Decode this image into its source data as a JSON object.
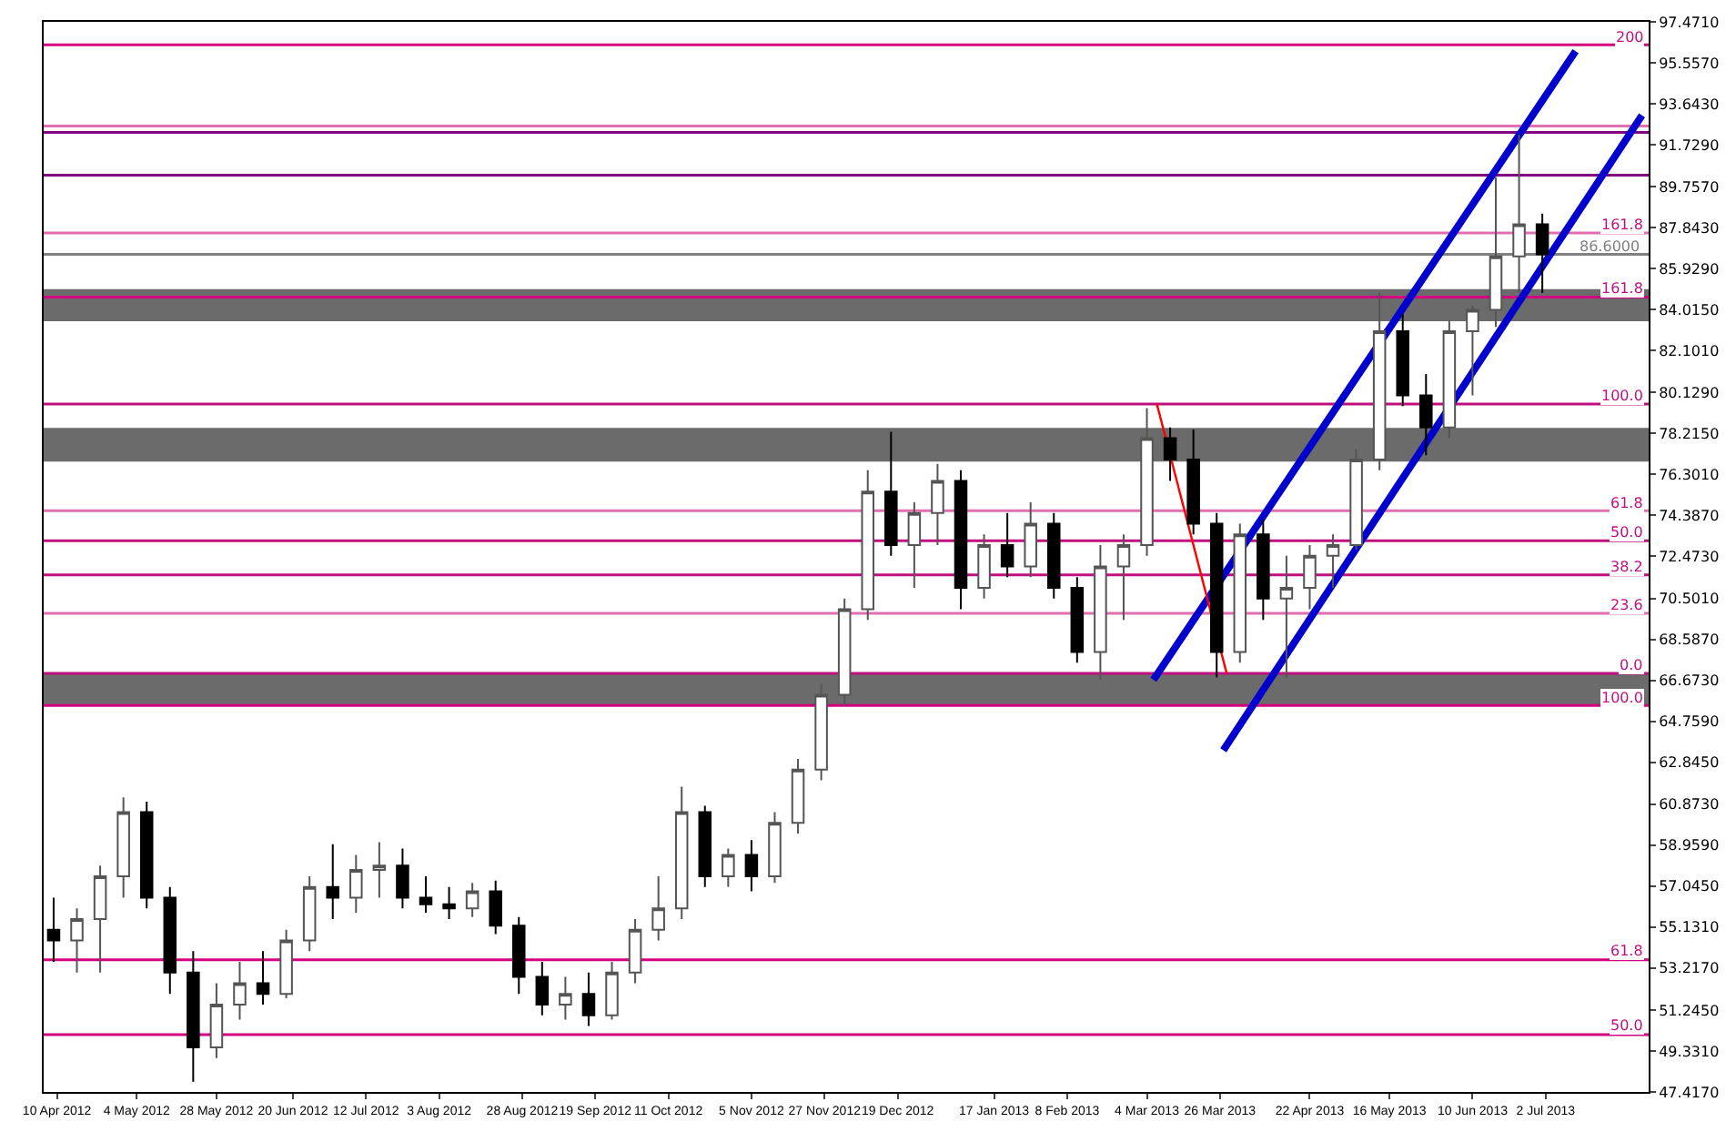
{
  "chart_data": {
    "type": "candlestick",
    "xlim": [
      "2012-04-06",
      "2013-08-02"
    ],
    "xticks": [
      {
        "value": "2012-04-10",
        "label": "10 Apr 2012"
      },
      {
        "value": "2012-05-04",
        "label": "4 May 2012"
      },
      {
        "value": "2012-05-28",
        "label": "28 May 2012"
      },
      {
        "value": "2012-06-20",
        "label": "20 Jun 2012"
      },
      {
        "value": "2012-07-12",
        "label": "12 Jul 2012"
      },
      {
        "value": "2012-08-03",
        "label": "3 Aug 2012"
      },
      {
        "value": "2012-08-28",
        "label": "28 Aug 2012"
      },
      {
        "value": "2012-09-19",
        "label": "19 Sep 2012"
      },
      {
        "value": "2012-10-11",
        "label": "11 Oct 2012"
      },
      {
        "value": "2012-11-05",
        "label": "5 Nov 2012"
      },
      {
        "value": "2012-11-27",
        "label": "27 Nov 2012"
      },
      {
        "value": "2012-12-19",
        "label": "19 Dec 2012"
      },
      {
        "value": "2013-01-17",
        "label": "17 Jan 2013"
      },
      {
        "value": "2013-02-08",
        "label": "8 Feb 2013"
      },
      {
        "value": "2013-03-04",
        "label": "4 Mar 2013"
      },
      {
        "value": "2013-03-26",
        "label": "26 Mar 2013"
      },
      {
        "value": "2013-04-22",
        "label": "22 Apr 2013"
      },
      {
        "value": "2013-05-16",
        "label": "16 May 2013"
      },
      {
        "value": "2013-06-10",
        "label": "10 Jun 2013"
      },
      {
        "value": "2013-07-02",
        "label": "2 Jul 2013"
      }
    ],
    "ylim": [
      47.417,
      97.471
    ],
    "yticks": [
      {
        "value": 97.471,
        "label": "97.4710"
      },
      {
        "value": 95.557,
        "label": "95.5570"
      },
      {
        "value": 93.643,
        "label": "93.6430"
      },
      {
        "value": 91.729,
        "label": "91.7290"
      },
      {
        "value": 89.757,
        "label": "89.7570"
      },
      {
        "value": 87.843,
        "label": "87.8430"
      },
      {
        "value": 85.929,
        "label": "85.9290"
      },
      {
        "value": 84.015,
        "label": "84.0150"
      },
      {
        "value": 82.101,
        "label": "82.1010"
      },
      {
        "value": 80.129,
        "label": "80.1290"
      },
      {
        "value": 78.215,
        "label": "78.2150"
      },
      {
        "value": 76.301,
        "label": "76.3010"
      },
      {
        "value": 74.387,
        "label": "74.3870"
      },
      {
        "value": 72.473,
        "label": "72.4730"
      },
      {
        "value": 70.501,
        "label": "70.5010"
      },
      {
        "value": 68.587,
        "label": "68.5870"
      },
      {
        "value": 66.673,
        "label": "66.6730"
      },
      {
        "value": 64.759,
        "label": "64.7590"
      },
      {
        "value": 62.845,
        "label": "62.8450"
      },
      {
        "value": 60.873,
        "label": "60.8730"
      },
      {
        "value": 58.959,
        "label": "58.9590"
      },
      {
        "value": 57.045,
        "label": "57.0450"
      },
      {
        "value": 55.131,
        "label": "55.1310"
      },
      {
        "value": 53.217,
        "label": "53.2170"
      },
      {
        "value": 51.245,
        "label": "51.2450"
      },
      {
        "value": 49.331,
        "label": "49.3310"
      },
      {
        "value": 47.417,
        "label": "47.4170"
      }
    ],
    "grid": false,
    "series": [
      {
        "x": [
          "2012-04-09",
          "2012-04-16",
          "2012-04-23",
          "2012-04-30",
          "2012-05-07",
          "2012-05-14",
          "2012-05-21",
          "2012-05-28",
          "2012-06-04",
          "2012-06-11",
          "2012-06-18",
          "2012-06-25",
          "2012-07-02",
          "2012-07-09",
          "2012-07-16",
          "2012-07-23",
          "2012-07-30",
          "2012-08-06",
          "2012-08-13",
          "2012-08-20",
          "2012-08-27",
          "2012-09-03",
          "2012-09-10",
          "2012-09-17",
          "2012-09-24",
          "2012-10-01",
          "2012-10-08",
          "2012-10-15",
          "2012-10-22",
          "2012-10-29",
          "2012-11-05",
          "2012-11-12",
          "2012-11-19",
          "2012-11-26",
          "2012-12-03",
          "2012-12-10",
          "2012-12-17",
          "2012-12-24",
          "2012-12-31",
          "2013-01-07",
          "2013-01-14",
          "2013-01-21",
          "2013-01-28",
          "2013-02-04",
          "2013-02-11",
          "2013-02-18",
          "2013-02-25",
          "2013-03-04",
          "2013-03-11",
          "2013-03-18",
          "2013-03-25",
          "2013-04-01",
          "2013-04-08",
          "2013-04-15",
          "2013-04-22",
          "2013-04-29",
          "2013-05-06",
          "2013-05-13",
          "2013-05-20",
          "2013-05-27",
          "2013-06-03",
          "2013-06-10",
          "2013-06-17",
          "2013-06-24",
          "2013-07-01"
        ],
        "ohlc": [
          [
            55.0,
            56.5,
            53.5,
            54.5
          ],
          [
            54.5,
            56.0,
            53.0,
            55.5
          ],
          [
            55.5,
            58.0,
            53.0,
            57.5
          ],
          [
            57.5,
            61.2,
            56.5,
            60.5
          ],
          [
            60.5,
            61.0,
            56.0,
            56.5
          ],
          [
            56.5,
            57.0,
            52.0,
            53.0
          ],
          [
            53.0,
            54.0,
            47.9,
            49.5
          ],
          [
            49.5,
            52.5,
            49.0,
            51.5
          ],
          [
            51.5,
            53.5,
            50.8,
            52.5
          ],
          [
            52.5,
            54.0,
            51.5,
            52.0
          ],
          [
            52.0,
            55.0,
            51.8,
            54.5
          ],
          [
            54.5,
            57.5,
            54.0,
            57.0
          ],
          [
            57.0,
            59.0,
            55.5,
            56.5
          ],
          [
            56.5,
            58.5,
            55.8,
            57.8
          ],
          [
            57.8,
            59.1,
            56.5,
            58.0
          ],
          [
            58.0,
            58.8,
            56.0,
            56.5
          ],
          [
            56.5,
            57.5,
            55.8,
            56.2
          ],
          [
            56.2,
            57.0,
            55.5,
            56.0
          ],
          [
            56.0,
            57.2,
            55.6,
            56.8
          ],
          [
            56.8,
            57.3,
            54.8,
            55.2
          ],
          [
            55.2,
            55.6,
            52.0,
            52.8
          ],
          [
            52.8,
            53.5,
            51.0,
            51.5
          ],
          [
            51.5,
            52.8,
            50.8,
            52.0
          ],
          [
            52.0,
            53.0,
            50.5,
            51.0
          ],
          [
            51.0,
            53.5,
            50.8,
            53.0
          ],
          [
            53.0,
            55.5,
            52.5,
            55.0
          ],
          [
            55.0,
            57.5,
            54.5,
            56.0
          ],
          [
            56.0,
            61.7,
            55.5,
            60.5
          ],
          [
            60.5,
            60.8,
            57.0,
            57.5
          ],
          [
            57.5,
            58.8,
            57.0,
            58.5
          ],
          [
            58.5,
            59.2,
            56.8,
            57.5
          ],
          [
            57.5,
            60.5,
            57.2,
            60.0
          ],
          [
            60.0,
            63.0,
            59.5,
            62.5
          ],
          [
            62.5,
            66.5,
            62.0,
            66.0
          ],
          [
            66.0,
            70.5,
            65.5,
            70.0
          ],
          [
            70.0,
            76.5,
            69.5,
            75.5
          ],
          [
            75.5,
            78.3,
            72.5,
            73.0
          ],
          [
            73.0,
            75.0,
            71.0,
            74.5
          ],
          [
            74.5,
            76.8,
            73.0,
            76.0
          ],
          [
            76.0,
            76.5,
            70.0,
            71.0
          ],
          [
            71.0,
            73.5,
            70.5,
            73.0
          ],
          [
            73.0,
            74.5,
            71.5,
            72.0
          ],
          [
            72.0,
            75.0,
            71.5,
            74.0
          ],
          [
            74.0,
            74.5,
            70.5,
            71.0
          ],
          [
            71.0,
            71.5,
            67.5,
            68.0
          ],
          [
            68.0,
            73.0,
            66.7,
            72.0
          ],
          [
            72.0,
            73.5,
            69.5,
            73.0
          ],
          [
            73.0,
            79.4,
            72.5,
            78.0
          ],
          [
            78.0,
            78.5,
            76.0,
            77.0
          ],
          [
            77.0,
            78.4,
            73.5,
            74.0
          ],
          [
            74.0,
            74.5,
            66.8,
            68.0
          ],
          [
            68.0,
            74.0,
            67.5,
            73.5
          ],
          [
            73.5,
            74.2,
            69.5,
            70.5
          ],
          [
            70.5,
            72.5,
            66.8,
            71.0
          ],
          [
            71.0,
            73.0,
            70.0,
            72.5
          ],
          [
            72.5,
            73.5,
            71.0,
            73.0
          ],
          [
            73.0,
            77.5,
            72.8,
            77.0
          ],
          [
            77.0,
            84.8,
            76.5,
            83.0
          ],
          [
            83.0,
            83.8,
            79.5,
            80.0
          ],
          [
            80.0,
            81.0,
            77.2,
            78.5
          ],
          [
            78.5,
            83.5,
            78.0,
            83.0
          ],
          [
            83.0,
            84.2,
            80.0,
            84.0
          ],
          [
            84.0,
            90.2,
            83.2,
            86.5
          ],
          [
            86.5,
            92.2,
            84.8,
            88.0
          ],
          [
            88.0,
            88.5,
            84.8,
            86.6
          ]
        ]
      },
      {
        "type": "line",
        "color": "#0000cc",
        "x": [
          "2013-03-06",
          "2013-07-11"
        ],
        "values": [
          66.7,
          96.1
        ]
      },
      {
        "type": "line",
        "color": "#0000cc",
        "x": [
          "2013-03-27",
          "2013-07-31"
        ],
        "values": [
          63.4,
          93.1
        ]
      },
      {
        "type": "line",
        "color": "#ff0000",
        "x": [
          "2013-03-07",
          "2013-03-28"
        ],
        "values": [
          79.6,
          67.0
        ]
      }
    ],
    "bands": [
      {
        "axis": "y",
        "from": 83.47,
        "to": 84.97,
        "color": "#6b6b6b"
      },
      {
        "axis": "y",
        "from": 76.9,
        "to": 78.48,
        "color": "#6b6b6b"
      },
      {
        "axis": "y",
        "from": 65.49,
        "to": 66.98,
        "color": "#6b6b6b"
      }
    ],
    "ref_lines": [
      {
        "axis": "y",
        "value": 96.4,
        "color": "#d4007f"
      },
      {
        "axis": "y",
        "value": 92.6,
        "color": "#e070b0"
      },
      {
        "axis": "y",
        "value": 92.3,
        "color": "#800080"
      },
      {
        "axis": "y",
        "value": 90.3,
        "color": "#800080"
      },
      {
        "axis": "y",
        "value": 87.6,
        "color": "#e070b0"
      },
      {
        "axis": "y",
        "value": 86.6,
        "label": "86.6000",
        "color": "#808080"
      },
      {
        "axis": "y",
        "value": 84.6,
        "color": "#d4007f"
      },
      {
        "axis": "y",
        "value": 79.6,
        "color": "#c0107f"
      },
      {
        "axis": "y",
        "value": 74.6,
        "color": "#e070b0"
      },
      {
        "axis": "y",
        "value": 73.2,
        "color": "#c0107f"
      },
      {
        "axis": "y",
        "value": 71.6,
        "color": "#c0107f"
      },
      {
        "axis": "y",
        "value": 69.8,
        "color": "#e070b0"
      },
      {
        "axis": "y",
        "value": 67.0,
        "color": "#c0107f"
      },
      {
        "axis": "y",
        "value": 65.5,
        "color": "#d4007f"
      },
      {
        "axis": "y",
        "value": 53.6,
        "color": "#d4007f"
      },
      {
        "axis": "y",
        "value": 50.1,
        "color": "#d4007f"
      }
    ],
    "annotations": [
      {
        "text": "200",
        "x": "2013-08-01",
        "y": 96.4
      },
      {
        "text": "161.8",
        "x": "2013-08-01",
        "y": 87.6
      },
      {
        "text": "161.8",
        "x": "2013-08-01",
        "y": 84.6
      },
      {
        "text": "100.0",
        "x": "2013-08-01",
        "y": 79.6
      },
      {
        "text": "61.8",
        "x": "2013-08-01",
        "y": 74.6
      },
      {
        "text": "50.0",
        "x": "2013-08-01",
        "y": 73.2
      },
      {
        "text": "38.2",
        "x": "2013-08-01",
        "y": 71.6
      },
      {
        "text": "23.6",
        "x": "2013-08-01",
        "y": 69.8
      },
      {
        "text": "0.0",
        "x": "2013-08-01",
        "y": 67.0
      },
      {
        "text": "100.0",
        "x": "2013-08-01",
        "y": 65.5
      },
      {
        "text": "61.8",
        "x": "2013-08-01",
        "y": 53.6
      },
      {
        "text": "50.0",
        "x": "2013-08-01",
        "y": 50.1
      }
    ]
  }
}
